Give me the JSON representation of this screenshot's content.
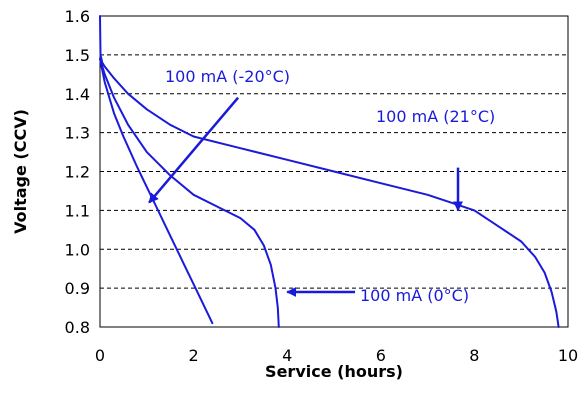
{
  "chart_data": {
    "type": "line",
    "xlabel": "Service (hours)",
    "ylabel": "Voltage (CCV)",
    "xlim": [
      0,
      10
    ],
    "ylim": [
      0.8,
      1.6
    ],
    "xticks": [
      "0",
      "2",
      "4",
      "6",
      "8",
      "10"
    ],
    "yticks": [
      "0.8",
      "0.9",
      "1.0",
      "1.1",
      "1.2",
      "1.3",
      "1.4",
      "1.5",
      "1.6"
    ],
    "grid": "horizontal dashed",
    "series_color": "#1a1adb",
    "series": [
      {
        "name": "100 mA (21°C)",
        "x": [
          0,
          0.01,
          0.05,
          0.1,
          0.3,
          0.6,
          1.0,
          1.5,
          2.0,
          3.0,
          4.0,
          5.0,
          6.0,
          7.0,
          7.5,
          8.0,
          8.5,
          9.0,
          9.3,
          9.5,
          9.65,
          9.75,
          9.8
        ],
        "y": [
          1.6,
          1.5,
          1.48,
          1.47,
          1.44,
          1.4,
          1.36,
          1.32,
          1.29,
          1.26,
          1.23,
          1.2,
          1.17,
          1.14,
          1.12,
          1.1,
          1.06,
          1.02,
          0.98,
          0.94,
          0.89,
          0.84,
          0.8
        ]
      },
      {
        "name": "100 mA (0°C)",
        "x": [
          0,
          0.1,
          0.3,
          0.6,
          1.0,
          1.5,
          2.0,
          2.5,
          3.0,
          3.3,
          3.5,
          3.65,
          3.75,
          3.8,
          3.82
        ],
        "y": [
          1.49,
          1.45,
          1.39,
          1.32,
          1.25,
          1.19,
          1.14,
          1.11,
          1.08,
          1.05,
          1.01,
          0.96,
          0.9,
          0.85,
          0.8
        ]
      },
      {
        "name": "100 mA (-20°C)",
        "x": [
          0,
          0.1,
          0.3,
          0.5,
          0.8,
          1.0,
          1.2,
          1.4,
          1.6,
          1.8,
          2.0,
          2.2,
          2.4
        ],
        "y": [
          1.49,
          1.43,
          1.35,
          1.29,
          1.21,
          1.16,
          1.11,
          1.06,
          1.01,
          0.96,
          0.91,
          0.86,
          0.81
        ]
      }
    ],
    "annotations": [
      {
        "text": "100 mA (-20°C)",
        "arrow_from": [
          2.95,
          1.39
        ],
        "arrow_to": [
          1.05,
          1.12
        ]
      },
      {
        "text": "100 mA (21°C)",
        "arrow_from": [
          7.65,
          1.21
        ],
        "arrow_to": [
          7.65,
          1.1
        ]
      },
      {
        "text": "100 mA (0°C)",
        "arrow_from": [
          5.45,
          0.89
        ],
        "arrow_to": [
          4.0,
          0.89
        ]
      }
    ]
  }
}
